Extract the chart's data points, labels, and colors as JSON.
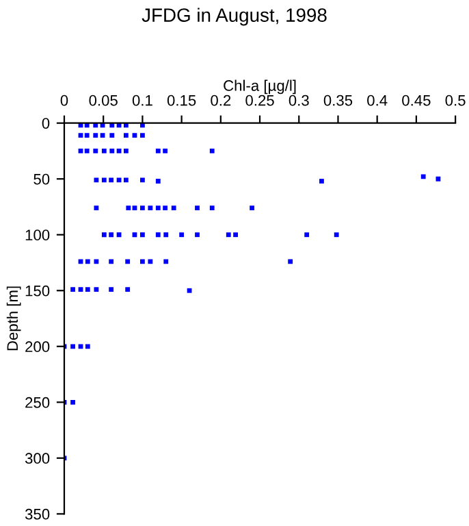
{
  "chart_data": {
    "type": "scatter",
    "title": "JFDG in August, 1998",
    "xlabel": "Chl-a [µg/l]",
    "ylabel": "Depth [m]",
    "xlim": [
      0,
      0.5
    ],
    "xticks": [
      0,
      0.05,
      0.1,
      0.15,
      0.2,
      0.25,
      0.3,
      0.35,
      0.4,
      0.45,
      0.5
    ],
    "ylim": [
      350,
      0
    ],
    "yticks": [
      0,
      50,
      100,
      150,
      200,
      250,
      300,
      350
    ],
    "grid": false,
    "marker": "square",
    "series": [
      {
        "color": "#0000ff",
        "x": [
          0.021,
          0.029,
          0.04,
          0.049,
          0.061,
          0.07,
          0.079,
          0.1,
          0.021,
          0.029,
          0.04,
          0.049,
          0.061,
          0.079,
          0.09,
          0.1,
          0.021,
          0.029,
          0.04,
          0.051,
          0.061,
          0.07,
          0.079,
          0.12,
          0.129,
          0.189,
          0.041,
          0.051,
          0.06,
          0.07,
          0.079,
          0.1,
          0.12,
          0.329,
          0.459,
          0.478,
          0.041,
          0.082,
          0.09,
          0.1,
          0.11,
          0.12,
          0.129,
          0.14,
          0.17,
          0.189,
          0.24,
          0.051,
          0.06,
          0.07,
          0.09,
          0.1,
          0.12,
          0.13,
          0.15,
          0.17,
          0.21,
          0.219,
          0.31,
          0.348,
          0.021,
          0.03,
          0.041,
          0.06,
          0.081,
          0.1,
          0.11,
          0.13,
          0.289,
          0.011,
          0.021,
          0.03,
          0.041,
          0.06,
          0.081,
          0.16,
          0.0,
          0.011,
          0.021,
          0.03,
          0.0,
          0.011,
          0.0
        ],
        "values": [
          2,
          2,
          2,
          2,
          2,
          2,
          2,
          2,
          11,
          11,
          11,
          11,
          11,
          11,
          11,
          11,
          25,
          25,
          25,
          25,
          25,
          25,
          25,
          25,
          25,
          25,
          51,
          51,
          51,
          51,
          51,
          51,
          52,
          52,
          48,
          50,
          76,
          76,
          76,
          76,
          76,
          76,
          76,
          76,
          76,
          76,
          76,
          100,
          100,
          100,
          100,
          100,
          100,
          100,
          100,
          100,
          100,
          100,
          100,
          100,
          124,
          124,
          124,
          124,
          124,
          124,
          124,
          124,
          124,
          149,
          149,
          149,
          149,
          149,
          149,
          150,
          200,
          200,
          200,
          200,
          250,
          250,
          300
        ]
      }
    ]
  }
}
